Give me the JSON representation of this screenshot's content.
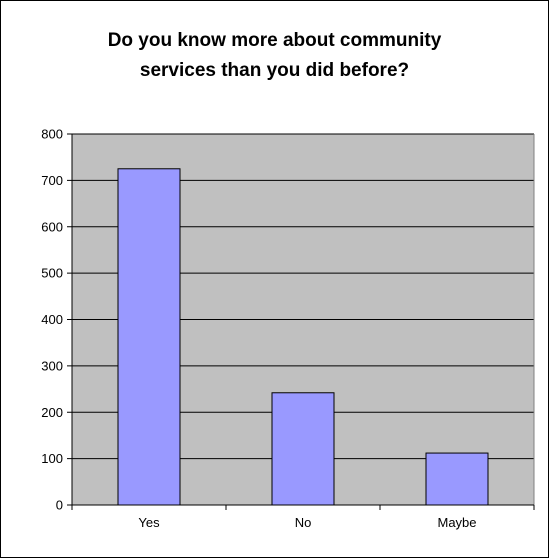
{
  "chart_data": {
    "type": "bar",
    "title_lines": [
      "Do you know more about community",
      "services than you did before?"
    ],
    "categories": [
      "Yes",
      "No",
      "Maybe"
    ],
    "values": [
      725,
      242,
      112
    ],
    "ylim": [
      0,
      800
    ],
    "yticks": [
      0,
      100,
      200,
      300,
      400,
      500,
      600,
      700,
      800
    ],
    "ytick_labels": [
      "0",
      "100",
      "200",
      "300",
      "400",
      "500",
      "600",
      "700",
      "800"
    ],
    "grid": true,
    "legend": false,
    "colors": {
      "bar": "#9999ff",
      "plot_background": "#c0c0c0",
      "grid": "#000000"
    }
  }
}
